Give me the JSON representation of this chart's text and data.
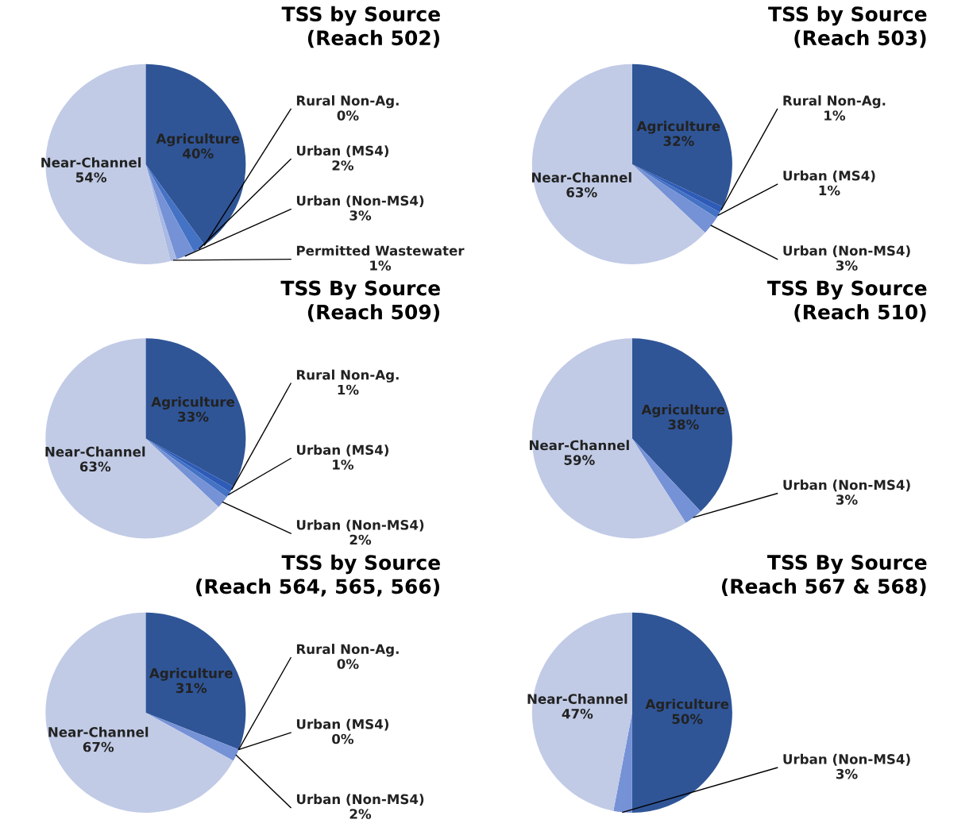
{
  "chart_data": [
    {
      "type": "pie",
      "title": "TSS by Source\n(Reach 502)",
      "categories": [
        "Agriculture",
        "Rural Non-Ag.",
        "Urban (MS4)",
        "Urban (Non-MS4)",
        "Permitted Wastewater",
        "Near-Channel"
      ],
      "values": [
        40,
        0,
        2,
        3,
        1,
        54
      ],
      "value_labels": [
        "40%",
        "0%",
        "2%",
        "3%",
        "1%",
        "54%"
      ],
      "colors": [
        "#2f5597",
        "#2e5bb8",
        "#4472c4",
        "#7692d6",
        "#a9b9e4",
        "#c1cbe6"
      ]
    },
    {
      "type": "pie",
      "title": "TSS by Source\n(Reach 503)",
      "categories": [
        "Agriculture",
        "Rural Non-Ag.",
        "Urban (MS4)",
        "Urban (Non-MS4)",
        "Near-Channel"
      ],
      "values": [
        32,
        1,
        1,
        3,
        63
      ],
      "value_labels": [
        "32%",
        "1%",
        "1%",
        "3%",
        "63%"
      ],
      "colors": [
        "#2f5597",
        "#2e5bb8",
        "#4472c4",
        "#7692d6",
        "#c1cbe6"
      ]
    },
    {
      "type": "pie",
      "title": "TSS By Source\n(Reach 509)",
      "categories": [
        "Agriculture",
        "Rural Non-Ag.",
        "Urban (MS4)",
        "Urban (Non-MS4)",
        "Near-Channel"
      ],
      "values": [
        33,
        1,
        1,
        2,
        63
      ],
      "value_labels": [
        "33%",
        "1%",
        "1%",
        "2%",
        "63%"
      ],
      "colors": [
        "#2f5597",
        "#2e5bb8",
        "#4472c4",
        "#7692d6",
        "#c1cbe6"
      ]
    },
    {
      "type": "pie",
      "title": "TSS By Source\n(Reach 510)",
      "categories": [
        "Agriculture",
        "Urban (Non-MS4)",
        "Near-Channel"
      ],
      "values": [
        38,
        3,
        59
      ],
      "value_labels": [
        "38%",
        "3%",
        "59%"
      ],
      "colors": [
        "#2f5597",
        "#7692d6",
        "#c1cbe6"
      ]
    },
    {
      "type": "pie",
      "title": "TSS by Source\n(Reach 564, 565, 566)",
      "categories": [
        "Agriculture",
        "Rural Non-Ag.",
        "Urban (MS4)",
        "Urban (Non-MS4)",
        "Near-Channel"
      ],
      "values": [
        31,
        0,
        0,
        2,
        67
      ],
      "value_labels": [
        "31%",
        "0%",
        "0%",
        "2%",
        "67%"
      ],
      "colors": [
        "#2f5597",
        "#2e5bb8",
        "#4472c4",
        "#7692d6",
        "#c1cbe6"
      ]
    },
    {
      "type": "pie",
      "title": "TSS By Source\n(Reach 567 & 568)",
      "categories": [
        "Agriculture",
        "Urban (Non-MS4)",
        "Near-Channel"
      ],
      "values": [
        50,
        3,
        47
      ],
      "value_labels": [
        "50%",
        "3%",
        "47%"
      ],
      "colors": [
        "#2f5597",
        "#7692d6",
        "#c1cbe6"
      ]
    }
  ]
}
